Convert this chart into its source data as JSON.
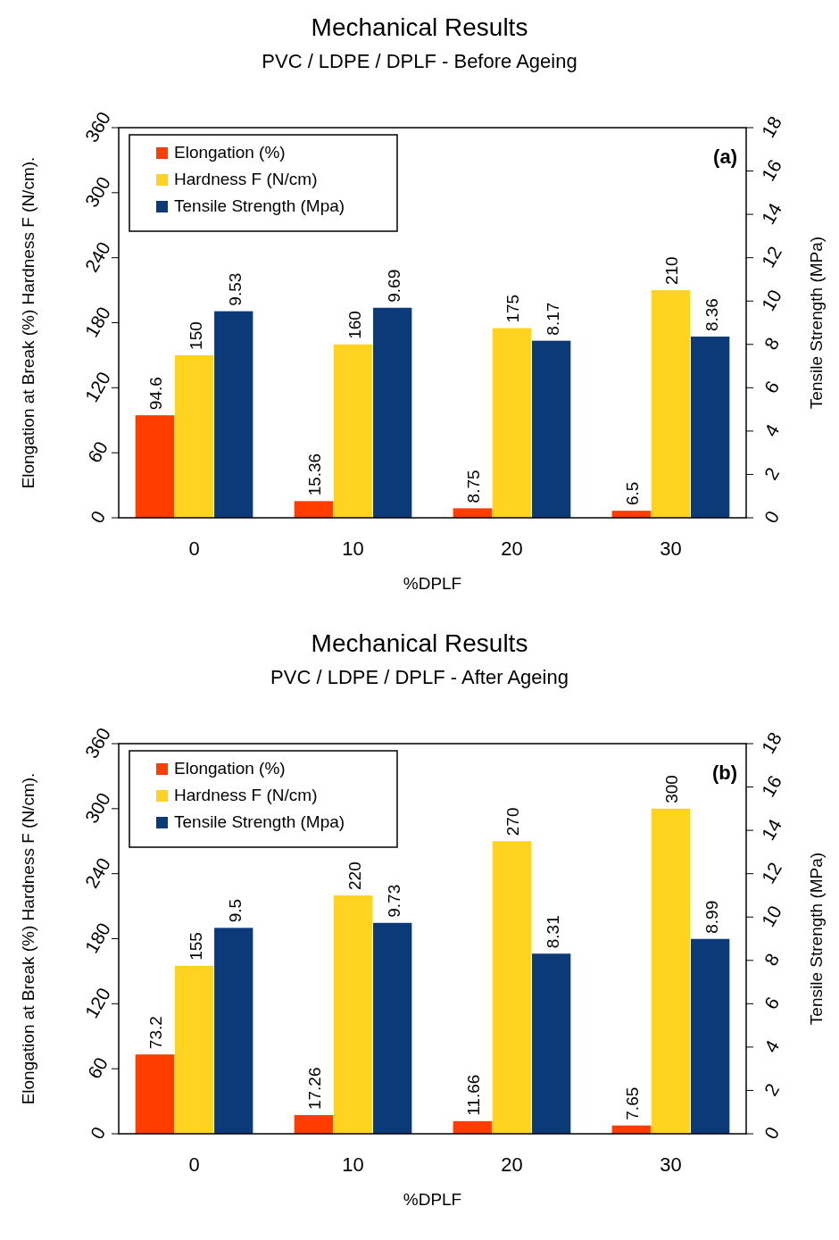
{
  "chart_data": [
    {
      "type": "bar",
      "title": "Mechanical Results",
      "subtitle": "PVC / LDPE / DPLF - Before Ageing",
      "xlabel": "%DPLF",
      "ylabel": "Elongation at Break (%) Hardness F (N/cm).",
      "y2label": "Tensile Strength (MPa)",
      "categories": [
        "0",
        "10",
        "20",
        "30"
      ],
      "ylim": [
        0,
        360
      ],
      "yticks": [
        0,
        60,
        120,
        180,
        240,
        300,
        360
      ],
      "y2lim": [
        0,
        18
      ],
      "y2ticks": [
        0,
        2,
        4,
        6,
        8,
        10,
        12,
        14,
        16,
        18
      ],
      "data_labels": true,
      "legend": "top left",
      "annotations": [
        "(a)"
      ],
      "series": [
        {
          "name": "Elongation (%)",
          "color": "#ff3d00",
          "values": [
            94.6,
            15.36,
            8.75,
            6.5
          ]
        },
        {
          "name": "Hardness F (N/cm)",
          "color": "#ffd320",
          "values": [
            150,
            160,
            175,
            210
          ]
        },
        {
          "name": "Tensile Strength (Mpa)",
          "color": "#0c3a78",
          "axis": "y2",
          "values": [
            9.53,
            9.69,
            8.17,
            8.36
          ]
        }
      ]
    },
    {
      "type": "bar",
      "title": "Mechanical Results",
      "subtitle": "PVC / LDPE / DPLF - After Ageing",
      "xlabel": "%DPLF",
      "ylabel": "Elongation at Break (%) Hardness F (N/cm).",
      "y2label": "Tensile Strength (MPa)",
      "categories": [
        "0",
        "10",
        "20",
        "30"
      ],
      "ylim": [
        0,
        360
      ],
      "yticks": [
        0,
        60,
        120,
        180,
        240,
        300,
        360
      ],
      "y2lim": [
        0,
        18
      ],
      "y2ticks": [
        0,
        2,
        4,
        6,
        8,
        10,
        12,
        14,
        16,
        18
      ],
      "data_labels": true,
      "legend": "top left",
      "annotations": [
        "(b)"
      ],
      "series": [
        {
          "name": "Elongation (%)",
          "color": "#ff3d00",
          "values": [
            73.2,
            17.26,
            11.66,
            7.65
          ]
        },
        {
          "name": "Hardness F (N/cm)",
          "color": "#ffd320",
          "values": [
            155,
            220,
            270,
            300
          ]
        },
        {
          "name": "Tensile Strength (Mpa)",
          "color": "#0c3a78",
          "axis": "y2",
          "values": [
            9.5,
            9.73,
            8.31,
            8.99
          ]
        }
      ]
    }
  ]
}
